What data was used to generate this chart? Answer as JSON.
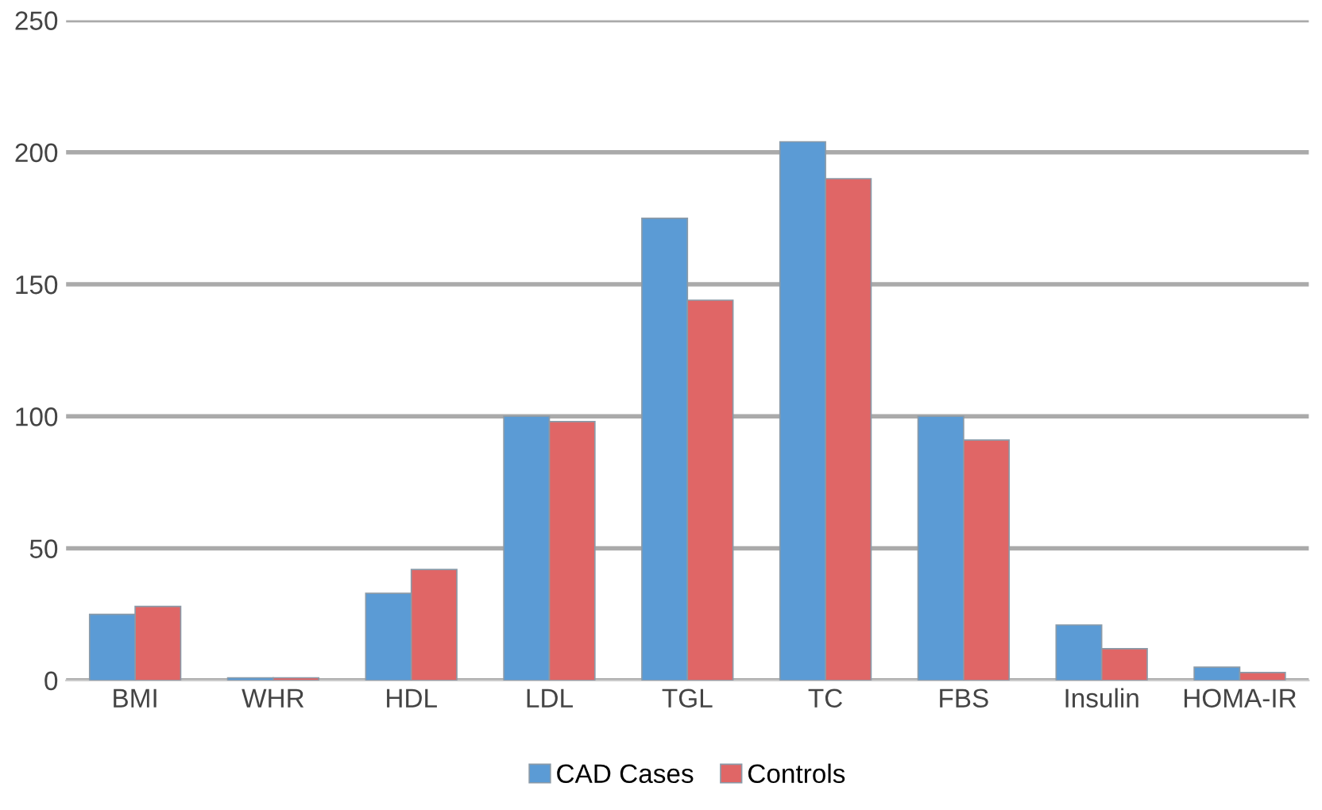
{
  "chart_data": {
    "type": "bar",
    "categories": [
      "BMI",
      "WHR",
      "HDL",
      "LDL",
      "TGL",
      "TC",
      "FBS",
      "Insulin",
      "HOMA-IR"
    ],
    "series": [
      {
        "name": "CAD Cases",
        "color": "#5b9bd5",
        "values": [
          25,
          1,
          33,
          100,
          175,
          204,
          100,
          21,
          5
        ]
      },
      {
        "name": "Controls",
        "color": "#e06666",
        "values": [
          28,
          1,
          42,
          98,
          144,
          190,
          91,
          12,
          3
        ]
      }
    ],
    "ylim": [
      0,
      250
    ],
    "yticks": [
      0,
      50,
      100,
      150,
      200,
      250
    ],
    "grid": "y",
    "legend": "bottom"
  }
}
